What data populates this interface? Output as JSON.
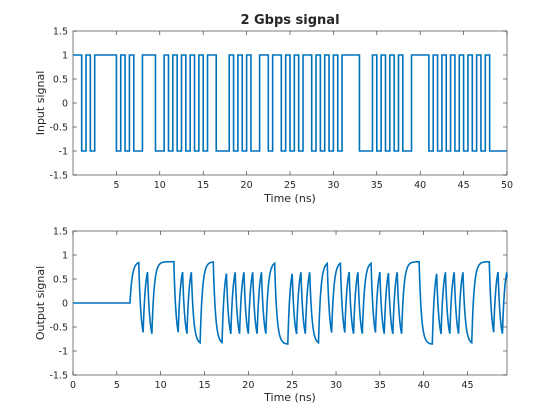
{
  "chart_data": [
    {
      "type": "line",
      "title": "2 Gbps signal",
      "xlabel": "Time (ns)",
      "ylabel": "Input signal",
      "xlim": [
        0,
        50
      ],
      "ylim": [
        -1.5,
        1.5
      ],
      "x_ticks": [
        5,
        10,
        15,
        20,
        25,
        30,
        35,
        40,
        45,
        50
      ],
      "y_ticks": [
        -1.5,
        -1,
        -0.5,
        0,
        0.5,
        1,
        1.5
      ],
      "grid": false,
      "line_color": "#0072BD",
      "bit_period_ns": 0.5,
      "bits": "1100001011000000111110001100111101000100001100001100000011111100011110000101100100000001110101100101001101110011",
      "bits_note_hidden": true,
      "series": [
        {
          "step_segments": [
            [
              0.0,
              1
            ],
            [
              1.0,
              -1
            ],
            [
              1.5,
              1
            ],
            [
              2.0,
              -1
            ],
            [
              2.5,
              1
            ],
            [
              5.0,
              -1
            ],
            [
              5.5,
              1
            ],
            [
              6.0,
              -1
            ],
            [
              6.5,
              1
            ],
            [
              7.0,
              -1
            ],
            [
              8.0,
              1
            ],
            [
              9.5,
              -1
            ],
            [
              10.5,
              1
            ],
            [
              11.0,
              -1
            ],
            [
              11.5,
              1
            ],
            [
              12.0,
              -1
            ],
            [
              12.5,
              1
            ],
            [
              13.0,
              -1
            ],
            [
              13.5,
              1
            ],
            [
              14.0,
              -1
            ],
            [
              14.5,
              1
            ],
            [
              15.0,
              -1
            ],
            [
              15.5,
              1
            ],
            [
              16.5,
              -1
            ],
            [
              18.0,
              1
            ],
            [
              18.5,
              -1
            ],
            [
              19.0,
              1
            ],
            [
              19.5,
              -1
            ],
            [
              20.0,
              1
            ],
            [
              20.5,
              -1
            ],
            [
              21.5,
              1
            ],
            [
              22.5,
              -1
            ],
            [
              23.0,
              1
            ],
            [
              24.0,
              -1
            ],
            [
              24.5,
              1
            ],
            [
              25.0,
              -1
            ],
            [
              25.5,
              1
            ],
            [
              26.0,
              -1
            ],
            [
              26.5,
              1
            ],
            [
              27.5,
              -1
            ],
            [
              28.0,
              1
            ],
            [
              28.5,
              -1
            ],
            [
              29.0,
              1
            ],
            [
              29.5,
              -1
            ],
            [
              30.0,
              1
            ],
            [
              30.5,
              -1
            ],
            [
              31.0,
              1
            ],
            [
              33.0,
              -1
            ],
            [
              34.5,
              1
            ],
            [
              35.0,
              -1
            ],
            [
              35.5,
              1
            ],
            [
              36.0,
              -1
            ],
            [
              36.5,
              1
            ],
            [
              37.0,
              -1
            ],
            [
              37.5,
              1
            ],
            [
              38.0,
              -1
            ],
            [
              39.0,
              1
            ],
            [
              41.0,
              -1
            ],
            [
              41.5,
              1
            ],
            [
              42.0,
              -1
            ],
            [
              42.5,
              1
            ],
            [
              43.0,
              -1
            ],
            [
              43.5,
              1
            ],
            [
              44.0,
              -1
            ],
            [
              44.5,
              1
            ],
            [
              45.0,
              -1
            ],
            [
              45.5,
              1
            ],
            [
              46.0,
              -1
            ],
            [
              46.5,
              1
            ],
            [
              47.0,
              -1
            ],
            [
              47.5,
              1
            ],
            [
              48.0,
              -1
            ],
            [
              48.5,
              -1
            ],
            [
              50.0,
              -1
            ]
          ]
        }
      ]
    },
    {
      "type": "line",
      "title": "",
      "xlabel": "Time (ns)",
      "ylabel": "Output signal",
      "xlim": [
        0,
        49.5
      ],
      "ylim": [
        -1.5,
        1.5
      ],
      "x_ticks": [
        0,
        5,
        10,
        15,
        20,
        25,
        30,
        35,
        40,
        45
      ],
      "y_ticks": [
        -1.5,
        -1,
        -0.5,
        0,
        0.5,
        1,
        1.5
      ],
      "grid": false,
      "line_color": "#0072BD",
      "delay_ns": 6.5,
      "series": [
        {
          "description_of_response": "delayed band-limited output of input signal"
        }
      ]
    }
  ],
  "labels": {
    "ytick": [
      "-1.5",
      "-1",
      "-0.5",
      "0",
      "0.5",
      "1",
      "1.5"
    ],
    "xtick_top": [
      "5",
      "10",
      "15",
      "20",
      "25",
      "30",
      "35",
      "40",
      "45",
      "50"
    ],
    "xtick_bottom": [
      "0",
      "5",
      "10",
      "15",
      "20",
      "25",
      "30",
      "35",
      "40",
      "45"
    ]
  }
}
